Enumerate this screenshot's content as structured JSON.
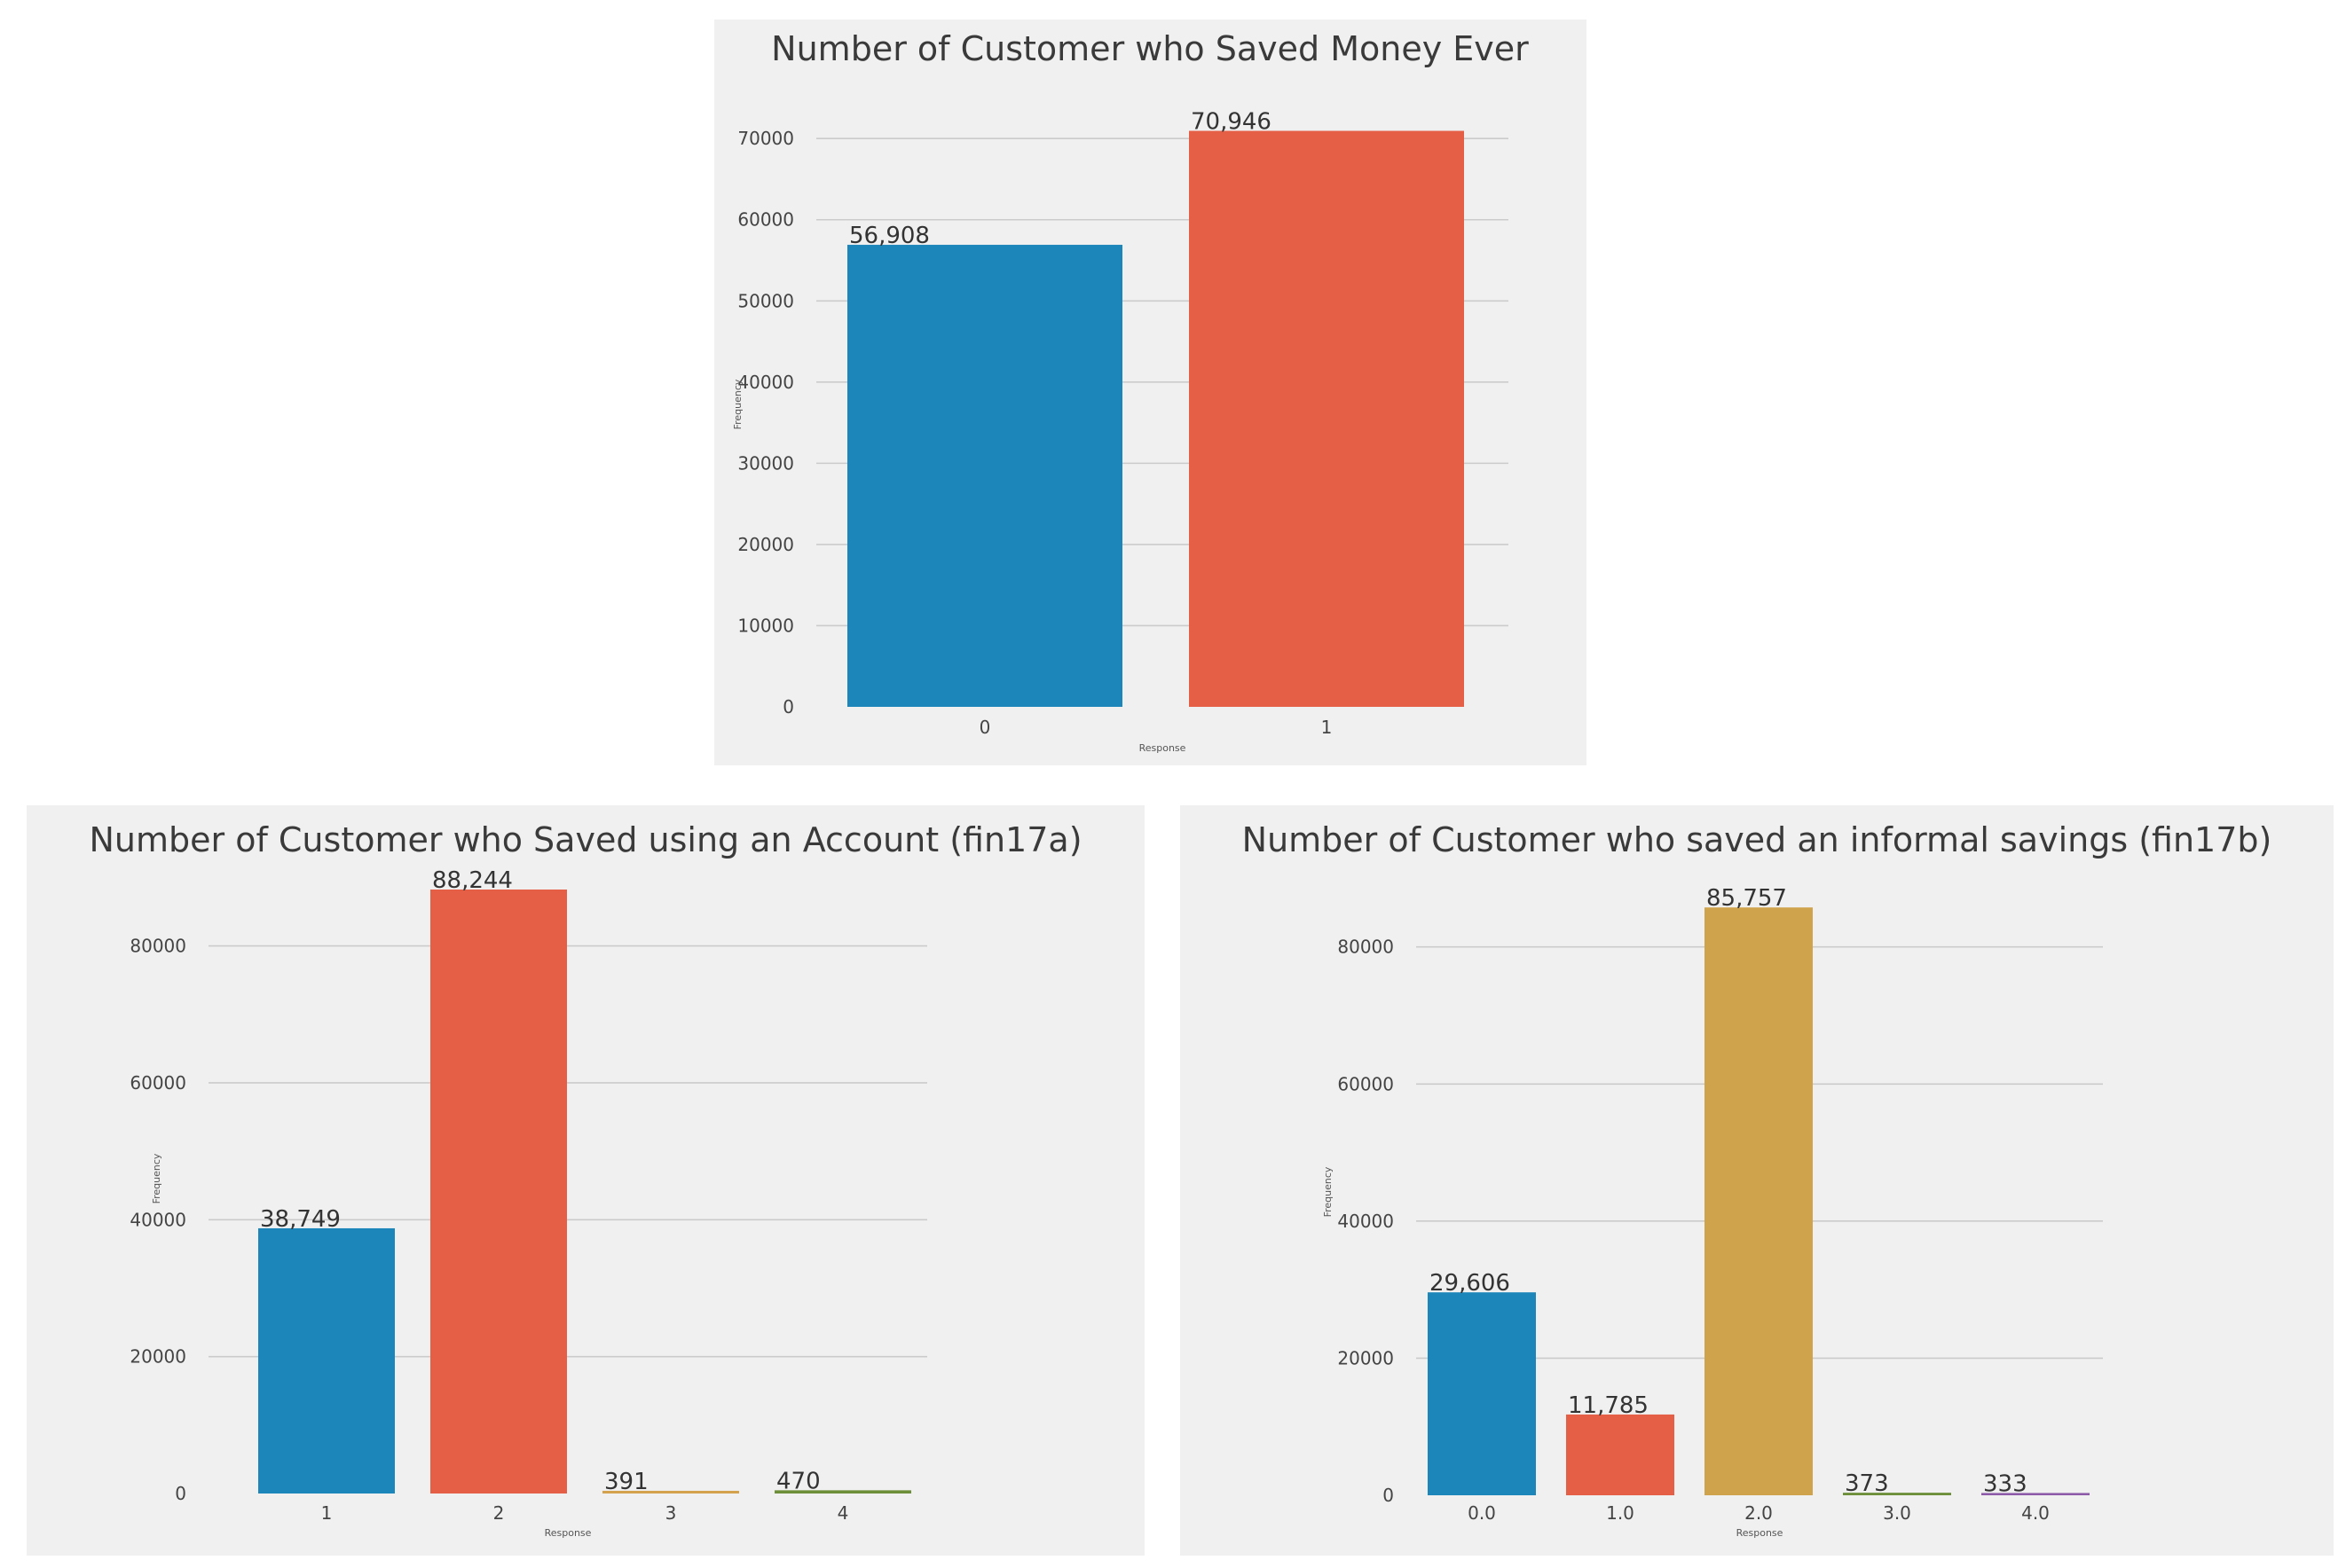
{
  "chart_data": [
    {
      "type": "bar",
      "title": "Number of Customer who Saved Money Ever",
      "xlabel": "Response",
      "ylabel": "Frequency",
      "categories": [
        "0",
        "1"
      ],
      "values": [
        56908,
        70946
      ],
      "value_labels": [
        "56,908",
        "70,946"
      ],
      "colors": [
        "#1c86bb",
        "#e45f46"
      ],
      "yticks": [
        0,
        10000,
        20000,
        30000,
        40000,
        50000,
        60000,
        70000
      ],
      "ylim": [
        0,
        74500
      ],
      "grid": true
    },
    {
      "type": "bar",
      "title": "Number of Customer who Saved using an Account (fin17a)",
      "xlabel": "Response",
      "ylabel": "Frequency",
      "categories": [
        "1",
        "2",
        "3",
        "4"
      ],
      "values": [
        38749,
        88244,
        391,
        470
      ],
      "value_labels": [
        "38,749",
        "88,244",
        "391",
        "470"
      ],
      "colors": [
        "#1c86bb",
        "#e45f46",
        "#d4a24c",
        "#6d8f3a"
      ],
      "yticks": [
        0,
        20000,
        40000,
        60000,
        80000
      ],
      "ylim": [
        0,
        92000
      ],
      "grid": true
    },
    {
      "type": "bar",
      "title": "Number of Customer who saved an informal savings (fin17b)",
      "xlabel": "Response",
      "ylabel": "Frequency",
      "categories": [
        "0.0",
        "1.0",
        "2.0",
        "3.0",
        "4.0"
      ],
      "values": [
        29606,
        11785,
        85757,
        373,
        333
      ],
      "value_labels": [
        "29,606",
        "11,785",
        "85,757",
        "373",
        "333"
      ],
      "colors": [
        "#1c86bb",
        "#e45f46",
        "#cfa24c",
        "#6d8f3a",
        "#8c5aa8"
      ],
      "yticks": [
        0,
        20000,
        40000,
        60000,
        80000
      ],
      "ylim": [
        0,
        88500
      ],
      "grid": true
    }
  ]
}
